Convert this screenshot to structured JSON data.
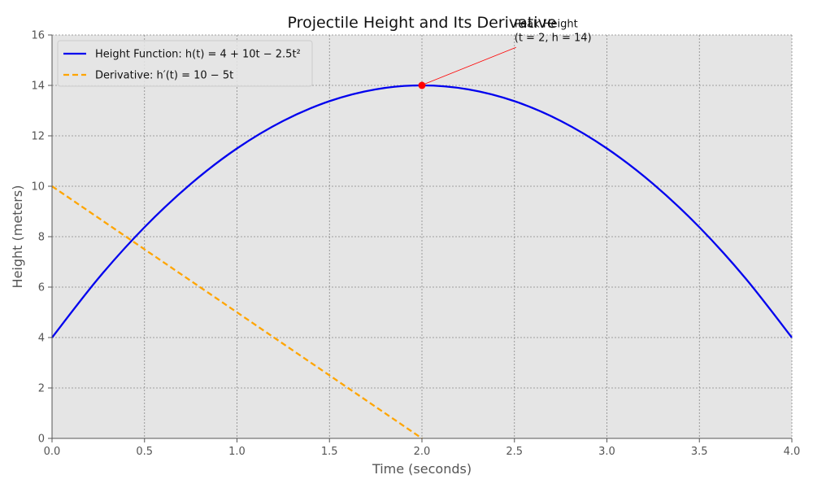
{
  "chart_data": {
    "type": "line",
    "title": "Projectile Height and Its Derivative",
    "xlabel": "Time (seconds)",
    "ylabel": "Height (meters)",
    "xlim": [
      0,
      4
    ],
    "ylim": [
      0,
      16
    ],
    "xticks": [
      "0.0",
      "0.5",
      "1.0",
      "1.5",
      "2.0",
      "2.5",
      "3.0",
      "3.5",
      "4.0"
    ],
    "yticks": [
      "0",
      "2",
      "4",
      "6",
      "8",
      "10",
      "12",
      "14",
      "16"
    ],
    "grid": true,
    "legend_position": "top-left",
    "series": [
      {
        "name": "Height Function: h(t) = 4 + 10t − 2.5t²",
        "style": "solid",
        "color": "#0000ee",
        "x": [
          0,
          0.25,
          0.5,
          0.75,
          1.0,
          1.25,
          1.5,
          1.75,
          2.0,
          2.25,
          2.5,
          2.75,
          3.0,
          3.25,
          3.5,
          3.75,
          4.0
        ],
        "y": [
          4,
          6.34375,
          8.375,
          10.09375,
          11.5,
          12.59375,
          13.375,
          13.84375,
          14,
          13.84375,
          13.375,
          12.59375,
          11.5,
          10.09375,
          8.375,
          6.34375,
          4
        ]
      },
      {
        "name": "Derivative: h′(t) = 10 − 5t",
        "style": "dashed",
        "color": "#ffa500",
        "x": [
          0,
          2
        ],
        "y": [
          10,
          0
        ]
      }
    ],
    "peak_point": {
      "x": 2,
      "y": 14,
      "color": "#ff0000"
    },
    "annotation": {
      "line1": "Peak Height",
      "line2": "(t = 2, h = 14)",
      "target": {
        "x": 2,
        "y": 14
      },
      "text_anchor": {
        "x": 2.5,
        "y": 15.7
      }
    },
    "colors": {
      "plot_background": "#e5e5e5",
      "grid": "#888888",
      "arrow": "#ff0000"
    }
  }
}
